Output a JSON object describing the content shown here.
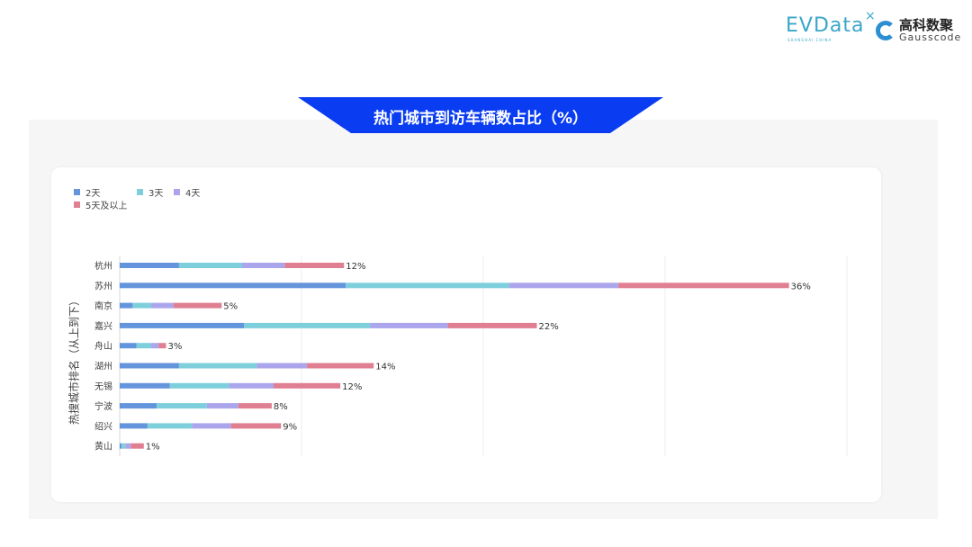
{
  "logos": {
    "evdata": "EVData",
    "evdata_sub": "SHANGHAI CHINA",
    "gauss_cn": "高科数聚",
    "gauss_en": "Gausscode"
  },
  "colors": {
    "banner": "#0a3df2",
    "s1": "#6495dc",
    "s2": "#7ecfdc",
    "s3": "#aba6ec",
    "s4": "#e07f92"
  },
  "chart_data": {
    "type": "bar",
    "orientation": "horizontal",
    "stacked": true,
    "title": "热门城市到访车辆数占比（%）",
    "ylabel": "热搜城市排名（从上到下）",
    "xlabel": "",
    "grid": true,
    "legend_position": "top-left",
    "categories": [
      "杭州",
      "苏州",
      "南京",
      "嘉兴",
      "舟山",
      "湖州",
      "无锡",
      "宁波",
      "绍兴",
      "黄山"
    ],
    "series": [
      {
        "name": "2天",
        "values": [
          3.2,
          12.2,
          0.7,
          6.7,
          0.9,
          3.2,
          2.7,
          2.0,
          1.5,
          0.1
        ]
      },
      {
        "name": "3天",
        "values": [
          3.4,
          8.8,
          1.0,
          6.8,
          0.8,
          4.2,
          3.2,
          2.7,
          2.4,
          0.2
        ]
      },
      {
        "name": "4天",
        "values": [
          2.3,
          5.9,
          1.2,
          4.2,
          0.4,
          2.7,
          2.4,
          1.7,
          2.1,
          0.3
        ]
      },
      {
        "name": "5天及以上",
        "values": [
          3.2,
          9.2,
          2.6,
          4.8,
          0.4,
          3.6,
          3.6,
          1.8,
          2.7,
          0.7
        ]
      }
    ],
    "total_labels": [
      "12%",
      "36%",
      "5%",
      "22%",
      "3%",
      "14%",
      "12%",
      "8%",
      "9%",
      "1%"
    ]
  }
}
